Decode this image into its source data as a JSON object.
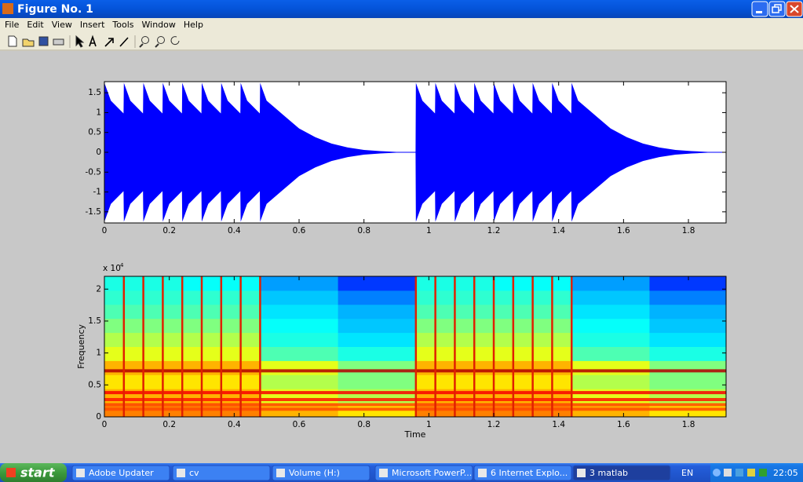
{
  "window": {
    "title": "Figure No. 1"
  },
  "menu": {
    "items": [
      "File",
      "Edit",
      "View",
      "Insert",
      "Tools",
      "Window",
      "Help"
    ]
  },
  "chart_data": [
    {
      "type": "area",
      "color": "#0000ff",
      "x": [
        0,
        0.02,
        0.059,
        0.06,
        0.08,
        0.119,
        0.12,
        0.14,
        0.179,
        0.18,
        0.2,
        0.239,
        0.24,
        0.26,
        0.299,
        0.3,
        0.32,
        0.359,
        0.36,
        0.38,
        0.419,
        0.42,
        0.44,
        0.479,
        0.48,
        0.5,
        0.55,
        0.6,
        0.65,
        0.7,
        0.75,
        0.8,
        0.85,
        0.9,
        0.959,
        0.96,
        0.98,
        1.019,
        1.02,
        1.04,
        1.079,
        1.08,
        1.1,
        1.139,
        1.14,
        1.16,
        1.199,
        1.2,
        1.22,
        1.259,
        1.26,
        1.28,
        1.319,
        1.32,
        1.34,
        1.379,
        1.38,
        1.4,
        1.439,
        1.44,
        1.46,
        1.51,
        1.56,
        1.61,
        1.66,
        1.71,
        1.76,
        1.81,
        1.86,
        1.916
      ],
      "values": [
        1.75,
        1.3,
        0.98,
        1.75,
        1.3,
        0.98,
        1.75,
        1.3,
        0.98,
        1.75,
        1.3,
        0.98,
        1.75,
        1.3,
        0.98,
        1.75,
        1.3,
        0.98,
        1.75,
        1.3,
        0.98,
        1.75,
        1.3,
        0.98,
        1.75,
        1.3,
        0.95,
        0.6,
        0.38,
        0.22,
        0.12,
        0.06,
        0.03,
        0.01,
        0,
        1.75,
        1.3,
        0.98,
        1.75,
        1.3,
        0.98,
        1.75,
        1.3,
        0.98,
        1.75,
        1.3,
        0.98,
        1.75,
        1.3,
        0.98,
        1.75,
        1.3,
        0.98,
        1.75,
        1.3,
        0.98,
        1.75,
        1.3,
        0.98,
        1.75,
        1.3,
        0.95,
        0.6,
        0.38,
        0.22,
        0.12,
        0.06,
        0.03,
        0.01,
        0
      ],
      "xlim": [
        0,
        1.916
      ],
      "ylim": [
        -1.78,
        1.78
      ],
      "xticks": [
        0,
        0.2,
        0.4,
        0.6,
        0.8,
        1,
        1.2,
        1.4,
        1.6,
        1.8
      ],
      "yticks": [
        -1.5,
        -1,
        -0.5,
        0,
        0.5,
        1,
        1.5
      ]
    },
    {
      "type": "heatmap",
      "colormap": "jet",
      "x_label": "Time",
      "y_label": "Frequency",
      "y_exponent": {
        "base": "x 10",
        "exponent": "4"
      },
      "x_edges": [
        0,
        0.24,
        0.48,
        0.72,
        0.96,
        1.2,
        1.44,
        1.68,
        1.916
      ],
      "y_edges": [
        0,
        0.22,
        0.44,
        0.66,
        0.88,
        1.1,
        1.32,
        1.54,
        1.76,
        1.98,
        2.2
      ],
      "z": [
        [
          0.75,
          0.75,
          0.7,
          0.65,
          0.75,
          0.75,
          0.7,
          0.65
        ],
        [
          0.7,
          0.7,
          0.6,
          0.55,
          0.7,
          0.7,
          0.6,
          0.55
        ],
        [
          0.65,
          0.65,
          0.55,
          0.5,
          0.65,
          0.65,
          0.55,
          0.5
        ],
        [
          0.7,
          0.7,
          0.6,
          0.5,
          0.7,
          0.7,
          0.6,
          0.5
        ],
        [
          0.6,
          0.6,
          0.45,
          0.4,
          0.6,
          0.6,
          0.45,
          0.4
        ],
        [
          0.55,
          0.55,
          0.4,
          0.35,
          0.55,
          0.55,
          0.4,
          0.35
        ],
        [
          0.5,
          0.5,
          0.38,
          0.32,
          0.5,
          0.5,
          0.38,
          0.32
        ],
        [
          0.45,
          0.45,
          0.35,
          0.3,
          0.45,
          0.45,
          0.35,
          0.3
        ],
        [
          0.42,
          0.42,
          0.32,
          0.25,
          0.42,
          0.42,
          0.32,
          0.25
        ],
        [
          0.4,
          0.38,
          0.28,
          0.18,
          0.4,
          0.38,
          0.28,
          0.18
        ]
      ],
      "band_freqs": [
        0.72,
        0.38,
        0.27,
        0.19,
        0.12
      ],
      "band_levels": [
        0.95,
        0.88,
        0.85,
        0.8,
        0.8
      ],
      "onsets": [
        0.06,
        0.12,
        0.18,
        0.24,
        0.3,
        0.36,
        0.42,
        0.48,
        0.96,
        1.02,
        1.08,
        1.14,
        1.2,
        1.26,
        1.32,
        1.38,
        1.44
      ],
      "onset_color": "#e02000",
      "xlim": [
        0,
        1.916
      ],
      "ylim": [
        0,
        2.2
      ],
      "xticks": [
        0,
        0.2,
        0.4,
        0.6,
        0.8,
        1,
        1.2,
        1.4,
        1.6,
        1.8
      ],
      "yticks": [
        0,
        0.5,
        1,
        1.5,
        2
      ]
    }
  ],
  "taskbar": {
    "start": "start",
    "buttons": [
      "Adobe Updater",
      "cv",
      "Volume (H:)",
      "Microsoft PowerP...",
      "6 Internet Explo...",
      "3 matlab"
    ],
    "language": "EN",
    "clock": "22:05"
  }
}
